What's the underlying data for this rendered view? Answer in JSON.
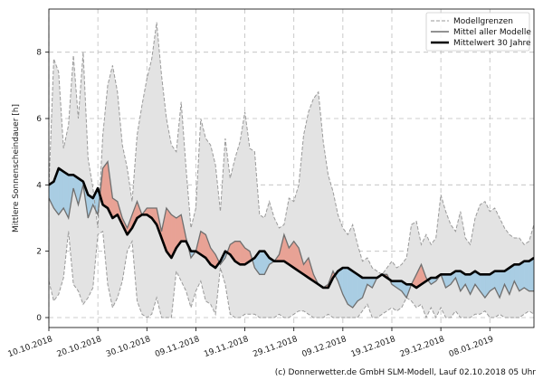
{
  "chart_data": {
    "type": "line",
    "title": "",
    "ylabel": "Mittlere Sonnenscheindauer [h]",
    "xlabel": "",
    "ylim": [
      -0.3,
      9.3
    ],
    "yticks": [
      0,
      2,
      4,
      6,
      8
    ],
    "x_start_label": "10.10.2018",
    "xticks": [
      {
        "day": 0,
        "label": "10.10.2018"
      },
      {
        "day": 10,
        "label": "20.10.2018"
      },
      {
        "day": 20,
        "label": "30.10.2018"
      },
      {
        "day": 30,
        "label": "09.11.2018"
      },
      {
        "day": 40,
        "label": "19.11.2018"
      },
      {
        "day": 50,
        "label": "29.11.2018"
      },
      {
        "day": 60,
        "label": "09.12.2018"
      },
      {
        "day": 70,
        "label": "19.12.2018"
      },
      {
        "day": 80,
        "label": "29.12.2018"
      },
      {
        "day": 90,
        "label": "08.01.2019"
      }
    ],
    "x_range": [
      0,
      99
    ],
    "legend_position": "top-right",
    "legend": [
      {
        "key": "bounds",
        "label": "Modellgrenzen"
      },
      {
        "key": "mean",
        "label": "Mittel aller Modelle"
      },
      {
        "key": "climate",
        "label": "Mittelwert 30 Jahre"
      }
    ],
    "series": {
      "upper": [
        3.9,
        7.8,
        7.4,
        5.1,
        5.8,
        7.9,
        6.0,
        8.0,
        4.8,
        3.9,
        2.7,
        5.5,
        7.0,
        7.6,
        6.8,
        5.2,
        4.5,
        3.5,
        5.5,
        6.4,
        7.2,
        7.8,
        8.9,
        7.3,
        6.0,
        5.2,
        5.0,
        6.5,
        4.5,
        2.7,
        3.3,
        6.0,
        5.4,
        5.2,
        4.6,
        3.2,
        5.4,
        4.2,
        4.8,
        5.3,
        6.2,
        5.1,
        5.0,
        3.1,
        3.0,
        3.5,
        3.0,
        2.7,
        2.8,
        3.6,
        3.5,
        4.0,
        5.5,
        6.2,
        6.6,
        6.8,
        5.3,
        4.3,
        3.8,
        3.1,
        2.7,
        2.5,
        2.8,
        2.2,
        1.7,
        1.8,
        1.5,
        1.4,
        1.3,
        1.5,
        1.7,
        1.5,
        1.6,
        1.8,
        2.8,
        2.9,
        2.2,
        2.5,
        2.2,
        2.4,
        3.7,
        3.2,
        2.8,
        2.6,
        3.2,
        2.4,
        2.2,
        3.0,
        3.4,
        3.5,
        3.2,
        3.3,
        3.0,
        2.7,
        2.5,
        2.4,
        2.4,
        2.2,
        2.3,
        2.8
      ],
      "lower": [
        1.1,
        0.5,
        0.7,
        1.2,
        2.6,
        1.0,
        0.8,
        0.4,
        0.6,
        0.9,
        2.5,
        2.6,
        1.0,
        0.3,
        0.6,
        1.1,
        2.0,
        2.3,
        0.5,
        0.1,
        0.0,
        0.1,
        0.6,
        0.0,
        0.0,
        0.0,
        1.4,
        1.1,
        0.8,
        0.3,
        0.8,
        1.1,
        0.5,
        0.4,
        0.1,
        1.5,
        1.0,
        0.1,
        0.0,
        0.0,
        0.1,
        0.1,
        0.1,
        0.0,
        0.0,
        0.0,
        0.0,
        0.1,
        0.0,
        0.0,
        0.1,
        0.2,
        0.2,
        0.1,
        0.0,
        0.0,
        0.0,
        0.1,
        0.0,
        0.0,
        0.0,
        0.0,
        0.0,
        0.0,
        0.2,
        0.4,
        0.0,
        0.0,
        0.1,
        0.2,
        0.3,
        0.2,
        0.3,
        0.6,
        0.5,
        0.3,
        0.4,
        0.0,
        0.3,
        0.0,
        0.3,
        0.0,
        0.0,
        0.2,
        0.0,
        0.0,
        0.0,
        0.1,
        0.1,
        0.2,
        0.0,
        0.0,
        0.1,
        0.0,
        0.0,
        0.0,
        0.0,
        0.1,
        0.2,
        0.1
      ],
      "mean": [
        3.6,
        3.3,
        3.1,
        3.3,
        3.0,
        3.9,
        3.4,
        4.0,
        3.0,
        3.4,
        3.1,
        4.5,
        4.7,
        3.6,
        3.5,
        3.0,
        2.7,
        3.1,
        3.5,
        3.1,
        3.3,
        3.3,
        3.3,
        2.6,
        3.3,
        3.1,
        3.0,
        3.1,
        2.4,
        1.8,
        2.0,
        2.6,
        2.5,
        2.1,
        1.9,
        1.6,
        1.8,
        2.2,
        2.3,
        2.3,
        2.1,
        2.0,
        1.5,
        1.3,
        1.3,
        1.6,
        1.7,
        1.9,
        2.5,
        2.1,
        2.3,
        2.1,
        1.6,
        1.8,
        1.3,
        1.0,
        0.9,
        1.0,
        1.4,
        1.1,
        0.7,
        0.4,
        0.3,
        0.5,
        0.6,
        1.0,
        0.9,
        1.2,
        1.3,
        1.3,
        1.0,
        0.9,
        0.8,
        0.6,
        1.0,
        1.3,
        1.6,
        1.2,
        1.0,
        1.1,
        1.3,
        0.9,
        1.0,
        1.2,
        0.8,
        1.0,
        0.7,
        1.0,
        0.8,
        0.6,
        0.8,
        0.9,
        0.6,
        1.0,
        0.7,
        1.1,
        0.8,
        0.9,
        0.8,
        0.8
      ],
      "climate": [
        4.0,
        4.1,
        4.5,
        4.4,
        4.3,
        4.3,
        4.2,
        4.1,
        3.7,
        3.6,
        3.9,
        3.4,
        3.3,
        3.0,
        3.1,
        2.8,
        2.5,
        2.7,
        3.0,
        3.1,
        3.1,
        3.0,
        2.8,
        2.4,
        2.0,
        1.8,
        2.1,
        2.3,
        2.3,
        2.0,
        2.0,
        1.9,
        1.8,
        1.6,
        1.5,
        1.7,
        2.0,
        1.9,
        1.7,
        1.6,
        1.6,
        1.7,
        1.8,
        2.0,
        2.0,
        1.8,
        1.7,
        1.7,
        1.7,
        1.6,
        1.5,
        1.4,
        1.3,
        1.2,
        1.1,
        1.0,
        0.9,
        0.9,
        1.2,
        1.4,
        1.5,
        1.5,
        1.4,
        1.3,
        1.2,
        1.2,
        1.2,
        1.2,
        1.3,
        1.2,
        1.1,
        1.1,
        1.1,
        1.0,
        1.0,
        0.9,
        1.0,
        1.1,
        1.2,
        1.2,
        1.3,
        1.3,
        1.3,
        1.4,
        1.4,
        1.3,
        1.3,
        1.4,
        1.3,
        1.3,
        1.3,
        1.4,
        1.4,
        1.4,
        1.5,
        1.6,
        1.6,
        1.7,
        1.7,
        1.8
      ]
    },
    "colors": {
      "band_fill": "#e3e3e3",
      "bounds_line": "#9a9a9a",
      "mean_line": "#6f6f6f",
      "climate_line": "#000000",
      "above_fill": "#e8a295",
      "below_fill": "#a9cde3",
      "grid": "#bdbdbd"
    },
    "credit": "(c) Donnerwetter.de GmbH SLM-Modell, Lauf 02.10.2018 05 Uhr"
  }
}
